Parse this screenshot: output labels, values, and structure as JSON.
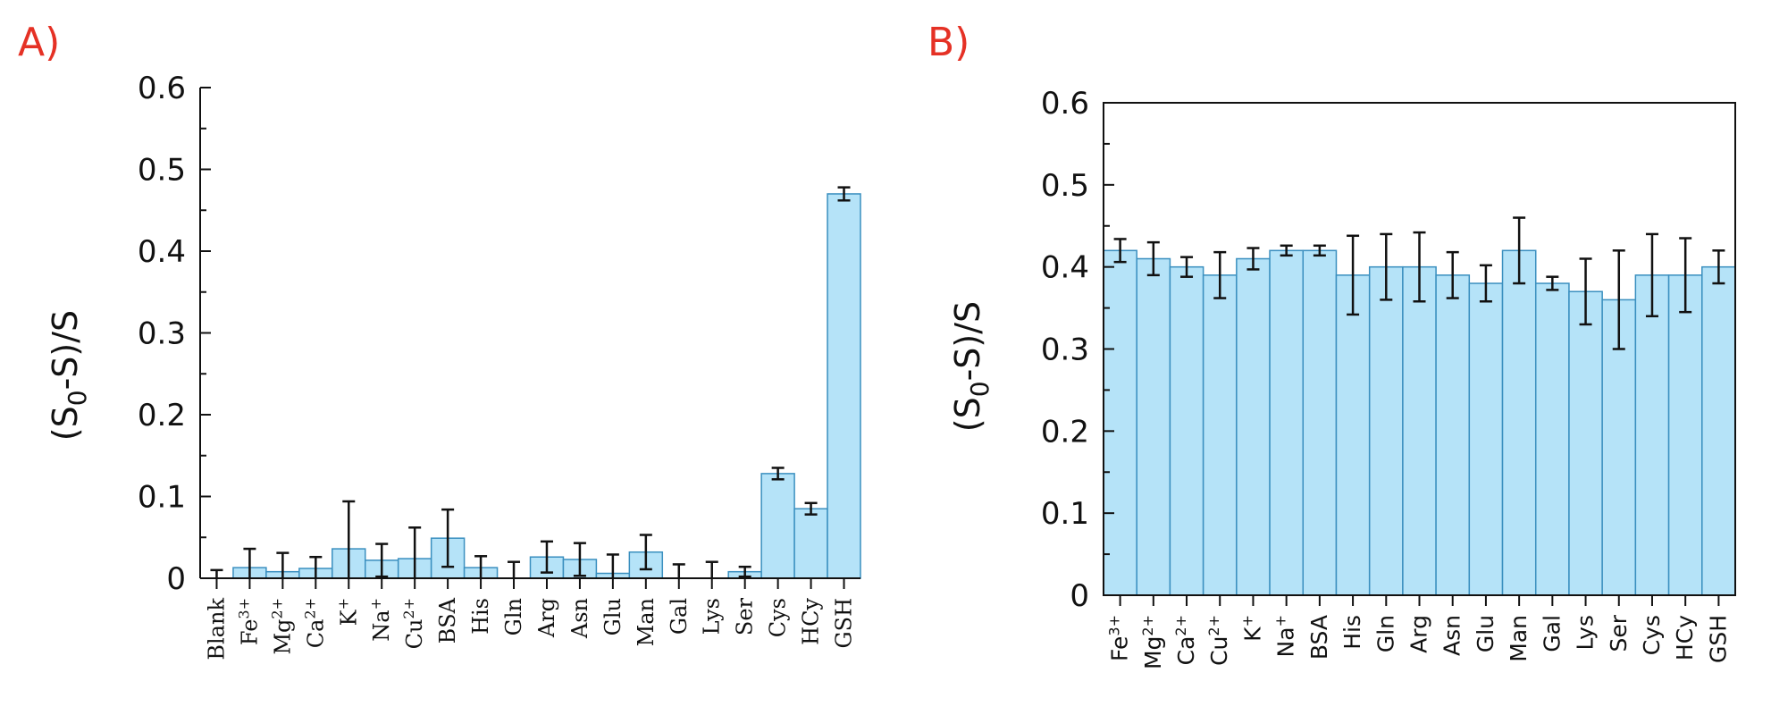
{
  "colors": {
    "bar_fill": "#b5e3f8",
    "bar_stroke": "#3a8fbf",
    "panel_label": "#e53125",
    "axis": "#111111"
  },
  "chart_data": [
    {
      "type": "bar",
      "panel_label": "A)",
      "title": "",
      "xlabel": "",
      "ylabel": "(S0-S)/S",
      "ylabel_main_1": "(S",
      "ylabel_sub": "0",
      "ylabel_main_2": "-S)/S",
      "ylim": [
        0,
        0.6
      ],
      "yticks": [
        "0",
        "0.1",
        "0.2",
        "0.3",
        "0.4",
        "0.5",
        "0.6"
      ],
      "yticks_values": [
        0,
        0.1,
        0.2,
        0.3,
        0.4,
        0.5,
        0.6
      ],
      "categories": [
        "Blank",
        "Fe3+",
        "Mg2+",
        "Ca2+",
        "K+",
        "Na+",
        "Cu2+",
        "BSA",
        "His",
        "Gln",
        "Arg",
        "Asn",
        "Glu",
        "Man",
        "Gal",
        "Lys",
        "Ser",
        "Cys",
        "HCy",
        "GSH"
      ],
      "category_labels": [
        {
          "base": "Blank",
          "sup": ""
        },
        {
          "base": "Fe",
          "sup": "3+"
        },
        {
          "base": "Mg",
          "sup": "2+"
        },
        {
          "base": "Ca",
          "sup": "2+"
        },
        {
          "base": "K",
          "sup": "+"
        },
        {
          "base": "Na",
          "sup": "+"
        },
        {
          "base": "Cu",
          "sup": "2+"
        },
        {
          "base": "BSA",
          "sup": ""
        },
        {
          "base": "His",
          "sup": ""
        },
        {
          "base": "Gln",
          "sup": ""
        },
        {
          "base": "Arg",
          "sup": ""
        },
        {
          "base": "Asn",
          "sup": ""
        },
        {
          "base": "Glu",
          "sup": ""
        },
        {
          "base": "Man",
          "sup": ""
        },
        {
          "base": "Gal",
          "sup": ""
        },
        {
          "base": "Lys",
          "sup": ""
        },
        {
          "base": "Ser",
          "sup": ""
        },
        {
          "base": "Cys",
          "sup": ""
        },
        {
          "base": "HCy",
          "sup": ""
        },
        {
          "base": "GSH",
          "sup": ""
        }
      ],
      "values": [
        0.0,
        0.013,
        0.008,
        0.012,
        0.036,
        0.022,
        0.024,
        0.049,
        0.013,
        0.0,
        0.026,
        0.023,
        0.006,
        0.032,
        0.0,
        0.0,
        0.008,
        0.128,
        0.085,
        0.47
      ],
      "errors": [
        0.01,
        0.023,
        0.023,
        0.014,
        0.058,
        0.02,
        0.038,
        0.035,
        0.014,
        0.02,
        0.019,
        0.02,
        0.023,
        0.021,
        0.017,
        0.02,
        0.006,
        0.007,
        0.007,
        0.008
      ]
    },
    {
      "type": "bar",
      "panel_label": "B)",
      "title": "",
      "xlabel": "",
      "ylabel": "(S0-S)/S",
      "ylabel_main_1": "(S",
      "ylabel_sub": "0",
      "ylabel_main_2": "-S)/S",
      "ylim": [
        0,
        0.6
      ],
      "yticks": [
        "0",
        "0.1",
        "0.2",
        "0.3",
        "0.4",
        "0.5",
        "0.6"
      ],
      "yticks_values": [
        0,
        0.1,
        0.2,
        0.3,
        0.4,
        0.5,
        0.6
      ],
      "categories": [
        "Fe3+",
        "Mg2+",
        "Ca2+",
        "Cu2+",
        "K+",
        "Na+",
        "BSA",
        "His",
        "Gln",
        "Arg",
        "Asn",
        "Glu",
        "Man",
        "Gal",
        "Lys",
        "Ser",
        "Cys",
        "HCy",
        "GSH"
      ],
      "category_labels": [
        {
          "base": "Fe",
          "sup": "3+"
        },
        {
          "base": "Mg",
          "sup": "2+"
        },
        {
          "base": "Ca",
          "sup": "2+"
        },
        {
          "base": "Cu",
          "sup": "2+"
        },
        {
          "base": "K",
          "sup": "+"
        },
        {
          "base": "Na",
          "sup": "+"
        },
        {
          "base": "BSA",
          "sup": ""
        },
        {
          "base": "His",
          "sup": ""
        },
        {
          "base": "Gln",
          "sup": ""
        },
        {
          "base": "Arg",
          "sup": ""
        },
        {
          "base": "Asn",
          "sup": ""
        },
        {
          "base": "Glu",
          "sup": ""
        },
        {
          "base": "Man",
          "sup": ""
        },
        {
          "base": "Gal",
          "sup": ""
        },
        {
          "base": "Lys",
          "sup": ""
        },
        {
          "base": "Ser",
          "sup": ""
        },
        {
          "base": "Cys",
          "sup": ""
        },
        {
          "base": "HCy",
          "sup": ""
        },
        {
          "base": "GSH",
          "sup": ""
        }
      ],
      "values": [
        0.42,
        0.41,
        0.4,
        0.39,
        0.41,
        0.42,
        0.42,
        0.39,
        0.4,
        0.4,
        0.39,
        0.38,
        0.42,
        0.38,
        0.37,
        0.36,
        0.39,
        0.39,
        0.4
      ],
      "errors": [
        0.014,
        0.02,
        0.012,
        0.028,
        0.013,
        0.006,
        0.006,
        0.048,
        0.04,
        0.042,
        0.028,
        0.022,
        0.04,
        0.008,
        0.04,
        0.06,
        0.05,
        0.045,
        0.02
      ]
    }
  ]
}
